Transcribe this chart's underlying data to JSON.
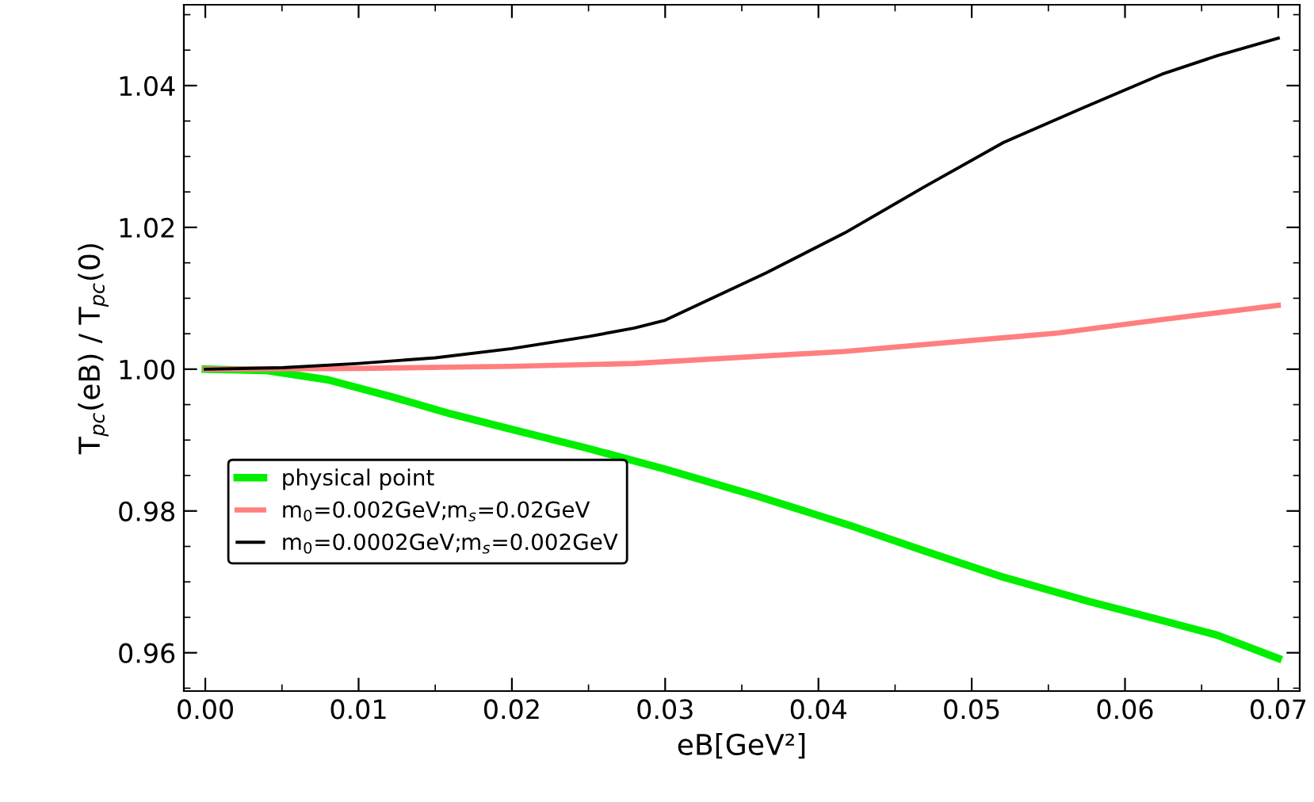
{
  "chart_data": {
    "type": "line",
    "xlabel": "eB[GeV²]",
    "ylabel": "T$_{pc}$(eB) / T$_{pc}$(0)",
    "series": [
      {
        "name": "physical point",
        "color": "#00ee00",
        "x": [
          0,
          0.004,
          0.008,
          0.012,
          0.016,
          0.02,
          0.025,
          0.03,
          0.036,
          0.042,
          0.047,
          0.052,
          0.0577,
          0.062,
          0.066,
          0.07
        ],
        "values": [
          1.0,
          0.9998,
          0.9985,
          0.9962,
          0.9937,
          0.9915,
          0.9888,
          0.9859,
          0.9821,
          0.978,
          0.9743,
          0.9707,
          0.9672,
          0.9648,
          0.9625,
          0.9592
        ]
      },
      {
        "name": "m$_{0}$=0.002GeV;m$_{s}$=0.02GeV",
        "color": "#ff7f7f",
        "x": [
          0,
          0.01,
          0.02,
          0.028,
          0.0417,
          0.0556,
          0.0624,
          0.07
        ],
        "values": [
          1.0,
          1.0001,
          1.0004,
          1.0008,
          1.0025,
          1.0051,
          1.007,
          1.009
        ]
      },
      {
        "name": "m$_{0}$=0.0002GeV;m$_{s}$=0.002GeV",
        "color": "#000000",
        "x": [
          0,
          0.005,
          0.01,
          0.015,
          0.02,
          0.025,
          0.028,
          0.03,
          0.0366,
          0.0417,
          0.0469,
          0.0521,
          0.0573,
          0.0624,
          0.066,
          0.07
        ],
        "values": [
          1.0,
          1.0002,
          1.0008,
          1.0016,
          1.0029,
          1.0046,
          1.0058,
          1.0069,
          1.0136,
          1.0192,
          1.0257,
          1.032,
          1.0369,
          1.0416,
          1.0442,
          1.0467
        ]
      }
    ],
    "xlim": [
      -0.0014,
      0.0714
    ],
    "ylim": [
      0.9546,
      1.0514
    ],
    "xticks": [
      {
        "value": 0,
        "label": "0.00"
      },
      {
        "value": 0.01,
        "label": "0.01"
      },
      {
        "value": 0.02,
        "label": "0.02"
      },
      {
        "value": 0.03,
        "label": "0.03"
      },
      {
        "value": 0.04,
        "label": "0.04"
      },
      {
        "value": 0.05,
        "label": "0.05"
      },
      {
        "value": 0.06,
        "label": "0.06"
      },
      {
        "value": 0.07,
        "label": "0.07"
      },
      {
        "value": 0.005,
        "label": null
      },
      {
        "value": 0.015,
        "label": null
      },
      {
        "value": 0.025,
        "label": null
      },
      {
        "value": 0.035,
        "label": null
      },
      {
        "value": 0.045,
        "label": null
      },
      {
        "value": 0.055,
        "label": null
      },
      {
        "value": 0.065,
        "label": null
      }
    ],
    "yticks": [
      {
        "value": 0.96,
        "label": "0.96"
      },
      {
        "value": 0.98,
        "label": "0.98"
      },
      {
        "value": 1.0,
        "label": "1.00"
      },
      {
        "value": 1.02,
        "label": "1.02"
      },
      {
        "value": 1.04,
        "label": "1.04"
      },
      {
        "value": 0.955,
        "label": null
      },
      {
        "value": 0.965,
        "label": null
      },
      {
        "value": 0.97,
        "label": null
      },
      {
        "value": 0.975,
        "label": null
      },
      {
        "value": 0.985,
        "label": null
      },
      {
        "value": 0.99,
        "label": null
      },
      {
        "value": 0.995,
        "label": null
      },
      {
        "value": 1.005,
        "label": null
      },
      {
        "value": 1.01,
        "label": null
      },
      {
        "value": 1.015,
        "label": null
      },
      {
        "value": 1.025,
        "label": null
      },
      {
        "value": 1.03,
        "label": null
      },
      {
        "value": 1.035,
        "label": null
      },
      {
        "value": 1.045,
        "label": null
      },
      {
        "value": 1.05,
        "label": null
      }
    ],
    "grid": false,
    "legend": "bottom left",
    "marker": "none",
    "line_style": "solid"
  }
}
